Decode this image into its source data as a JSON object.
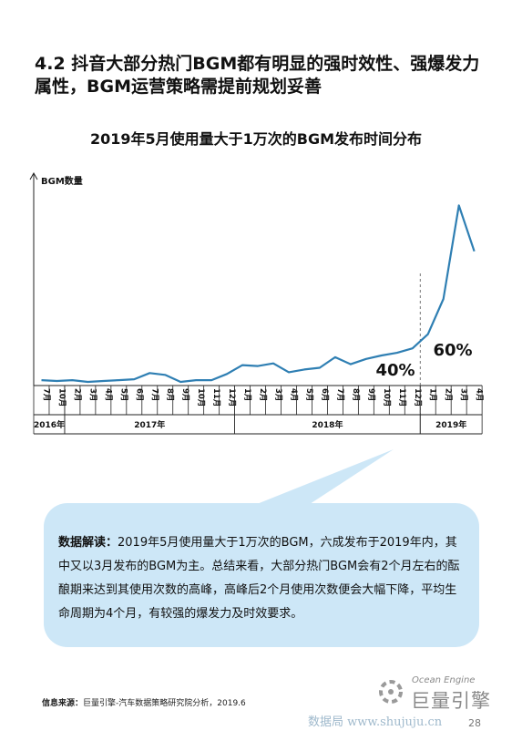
{
  "section": {
    "title": "4.2 抖音大部分热门BGM都有明显的强时效性、强爆发力属性，BGM运营策略需提前规划妥善"
  },
  "chart_data": {
    "type": "line",
    "title": "2019年5月使用量大于1万次的BGM发布时间分布",
    "ylabel": "BGM数量",
    "xlabel": "",
    "categories": [
      "7月",
      "10月",
      "2月",
      "3月",
      "4月",
      "5月",
      "6月",
      "7月",
      "8月",
      "9月",
      "10月",
      "11月",
      "12月",
      "1月",
      "2月",
      "3月",
      "4月",
      "5月",
      "6月",
      "7月",
      "8月",
      "9月",
      "10月",
      "11月",
      "12月",
      "1月",
      "2月",
      "3月",
      "4月"
    ],
    "year_groups": [
      {
        "label": "2016年",
        "count": 2
      },
      {
        "label": "2017年",
        "count": 11
      },
      {
        "label": "2018年",
        "count": 12
      },
      {
        "label": "2019年",
        "count": 4
      }
    ],
    "values": [
      1,
      0.5,
      1,
      0,
      0.5,
      1,
      1.5,
      5,
      4,
      0,
      1,
      1,
      4.5,
      9.5,
      9,
      10.5,
      5.5,
      7,
      8,
      14,
      10,
      13,
      15,
      16.5,
      19,
      27,
      47,
      100,
      74
    ],
    "ylim": [
      0,
      110
    ],
    "color": "#2f7fb3",
    "annotations": [
      {
        "text": "40%",
        "x_index": 23
      },
      {
        "text": "60%",
        "x_index": 26
      }
    ]
  },
  "callout": {
    "label": "数据解读：",
    "text": "2019年5月使用量大于1万次的BGM，六成发布于2019年内，其中又以3月发布的BGM为主。总结来看，大部分热门BGM会有2个月左右的酝酿期来达到其使用次数的高峰，高峰后2个月使用次数便会大幅下降，平均生命周期为4个月，有较强的爆发力及时效要求。"
  },
  "source": {
    "label": "信息来源：",
    "text": "巨量引擎-汽车数据策略研究院分析，2019.6"
  },
  "logo": {
    "en": "Ocean Engine",
    "cn": "巨量引擎"
  },
  "watermark": "数据局  www.shujuju.cn",
  "page_number": "28"
}
